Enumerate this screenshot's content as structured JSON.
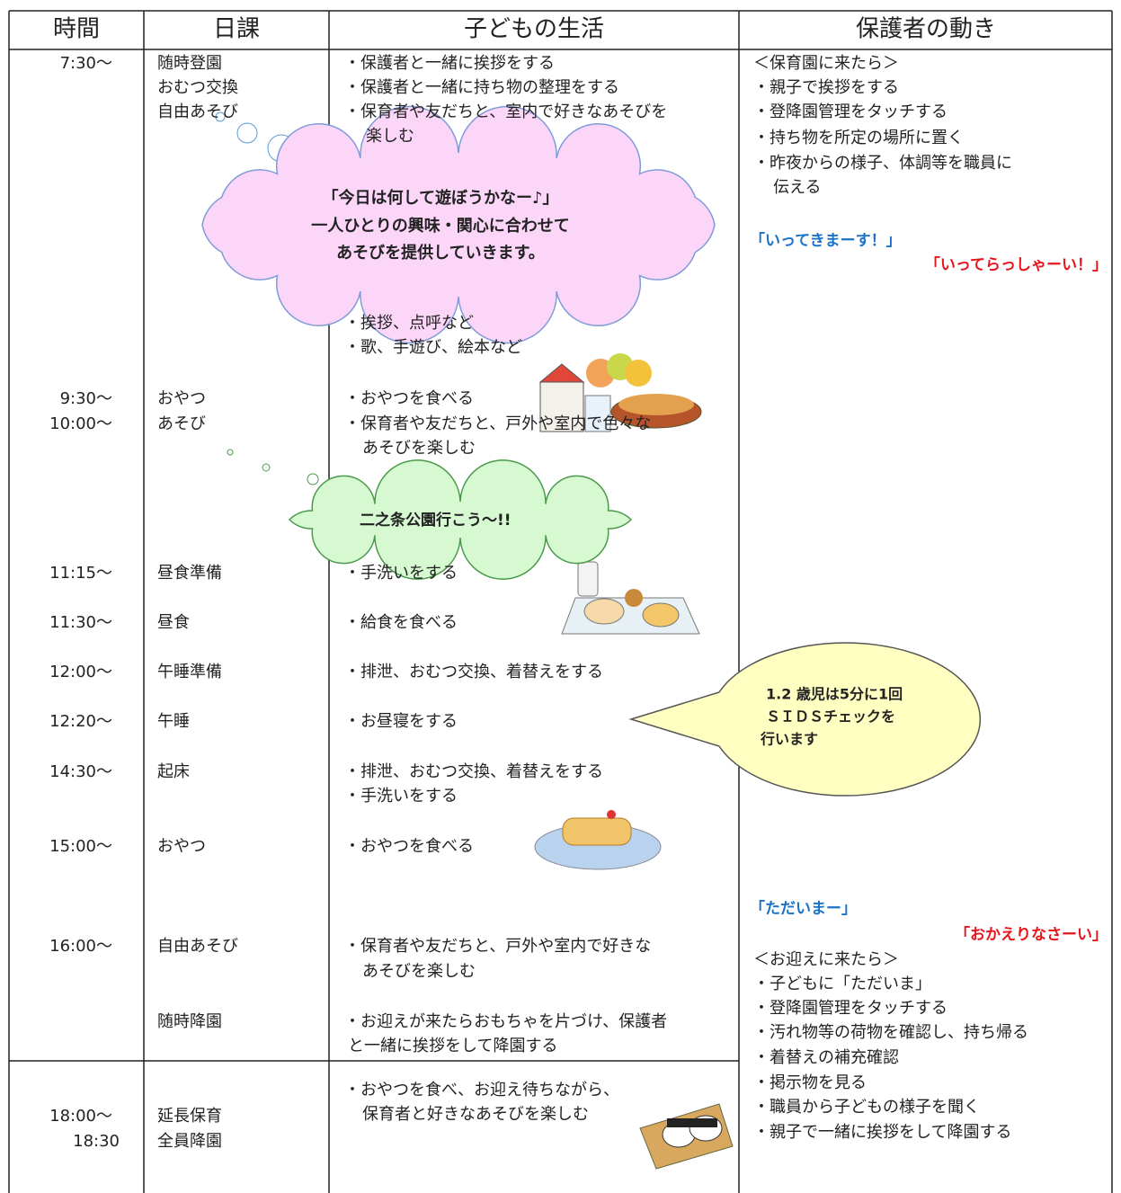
{
  "table": {
    "headers": [
      "時間",
      "日課",
      "子どもの生活",
      "保護者の動き"
    ],
    "times": [
      "7:30～",
      "9:30～",
      "10:00～",
      "11:15～",
      "11:30～",
      "12:00～",
      "12:20～",
      "14:30～",
      "15:00～",
      "16:00～",
      "18:00～",
      "18:30"
    ],
    "schedule": [
      "随時登園",
      "おむつ交換",
      "自由あそび",
      "おやつ",
      "あそび",
      "昼食準備",
      "昼食",
      "午睡準備",
      "午睡",
      "起床",
      "おやつ",
      "自由あそび",
      "随時降園",
      "延長保育",
      "全員降園"
    ],
    "child_life": [
      "・保護者と一緒に挨拶をする",
      "・保護者と一緒に持ち物の整理をする",
      "・保育者や友だちと、室内で好きなあそびを",
      "楽しむ",
      "・挨拶、点呼など",
      "・歌、手遊び、絵本など",
      "・おやつを食べる",
      "・保育者や友だちと、戸外や室内で色々な",
      "あそびを楽しむ",
      "・手洗いをする",
      "・給食を食べる",
      "・排泄、おむつ交換、着替えをする",
      "・お昼寝をする",
      "・排泄、おむつ交換、着替えをする",
      "・手洗いをする",
      "・おやつを食べる",
      "・保育者や友だちと、戸外や室内で好きな",
      "あそびを楽しむ",
      "・お迎えが来たらおもちゃを片づけ、保護者",
      "と一緒に挨拶をして降園する",
      "・おやつを食べ、お迎え待ちながら、",
      "保育者と好きなあそびを楽しむ"
    ],
    "parent_actions": [
      "＜保育園に来たら＞",
      "・親子で挨拶をする",
      "・登降園管理をタッチする",
      "・持ち物を所定の場所に置く",
      "・昨夜からの様子、体調等を職員に",
      "伝える",
      "＜お迎えに来たら＞",
      "・子どもに「ただいま」",
      "・登降園管理をタッチする",
      "・汚れ物等の荷物を確認し、持ち帰る",
      "・着替えの補充確認",
      "・掲示物を見る",
      "・職員から子どもの様子を聞く",
      "・親子で一緒に挨拶をして降園する"
    ],
    "greetings": [
      {
        "child": "「いってきまーす！」",
        "parent": "「いってらっしゃーい！」"
      },
      {
        "child": "「ただいまー」",
        "parent": "「おかえりなさーい」"
      }
    ]
  },
  "callouts": {
    "play": [
      "「今日は何して遊ぼうかなー♪」",
      "一人ひとりの興味・関心に合わせて",
      "あそびを提供していきます。"
    ],
    "park": "二之条公園行こう～!!",
    "sids": [
      "1.2 歳児は5分に1回",
      "ＳＩＤＳチェックを",
      "行います"
    ]
  }
}
